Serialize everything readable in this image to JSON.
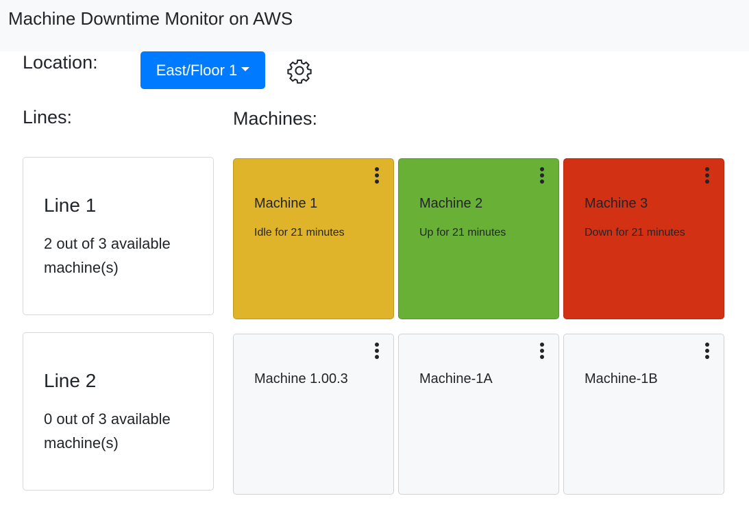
{
  "header": {
    "title": "Machine Downtime Monitor on AWS"
  },
  "location": {
    "label": "Location:",
    "selected": "East/Floor 1",
    "settings_icon": "gear-icon"
  },
  "lines": {
    "heading": "Lines:",
    "items": [
      {
        "name": "Line 1",
        "availability": "2 out of 3 available machine(s)"
      },
      {
        "name": "Line 2",
        "availability": "0 out of 3 available machine(s)"
      }
    ]
  },
  "machines": {
    "heading": "Machines:",
    "items": [
      {
        "name": "Machine 1",
        "status": "Idle for 21 minutes",
        "color": "#dfb42b"
      },
      {
        "name": "Machine 2",
        "status": "Up for 21 minutes",
        "color": "#68b036"
      },
      {
        "name": "Machine 3",
        "status": "Down for 21 minutes",
        "color": "#d33114"
      },
      {
        "name": "Machine 1.00.3",
        "status": "",
        "color": "#f7f8fa"
      },
      {
        "name": "Machine-1A",
        "status": "",
        "color": "#f7f8fa"
      },
      {
        "name": "Machine-1B",
        "status": "",
        "color": "#f7f8fa"
      }
    ]
  },
  "colors": {
    "primary": "#007bff",
    "idle": "#dfb42b",
    "up": "#68b036",
    "down": "#d33114",
    "unknown": "#f7f8fa"
  }
}
